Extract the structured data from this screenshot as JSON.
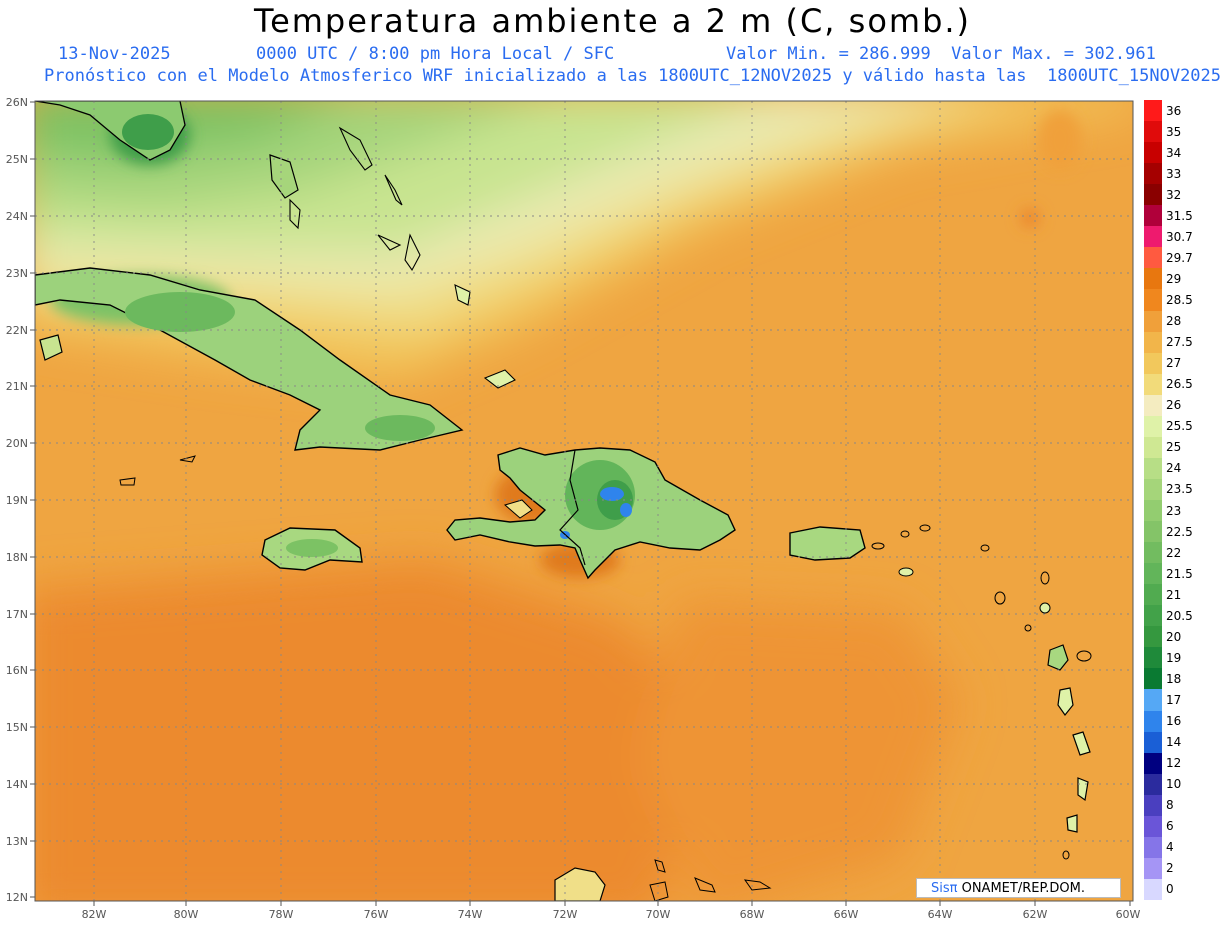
{
  "header": {
    "title": "Temperatura ambiente a 2 m (C, somb.)",
    "date": "13-Nov-2025",
    "time": "0000 UTC / 8:00 pm Hora Local / SFC",
    "minmax": "Valor Min. = 286.999  Valor Max. = 302.961",
    "model": "Pronóstico con el Modelo Atmosferico WRF inicializado a las 1800UTC_12NOV2025 y válido hasta las  1800UTC_15NOV2025"
  },
  "axes": {
    "lat_labels": [
      "26N",
      "25N",
      "24N",
      "23N",
      "22N",
      "21N",
      "20N",
      "19N",
      "18N",
      "17N",
      "16N",
      "15N",
      "14N",
      "13N",
      "12N"
    ],
    "lon_labels": [
      "82W",
      "80W",
      "78W",
      "76W",
      "74W",
      "72W",
      "70W",
      "68W",
      "66W",
      "64W",
      "62W",
      "60W"
    ]
  },
  "colorbar": {
    "labels": [
      "36",
      "35",
      "34",
      "33",
      "32",
      "31.5",
      "30.7",
      "29.7",
      "29",
      "28.5",
      "28",
      "27.5",
      "27",
      "26.5",
      "26",
      "25.5",
      "25",
      "24",
      "23.5",
      "23",
      "22.5",
      "22",
      "21.5",
      "21",
      "20.5",
      "20",
      "19",
      "18",
      "17",
      "16",
      "14",
      "12",
      "10",
      "8",
      "6",
      "4",
      "2",
      "0"
    ],
    "colors": [
      "#ff1a1a",
      "#e00b0b",
      "#c80000",
      "#a50000",
      "#8a0000",
      "#b0003a",
      "#ee1a6e",
      "#ff5a40",
      "#e8770f",
      "#f0871e",
      "#f0a03a",
      "#f2b54a",
      "#f2c85c",
      "#f2db7a",
      "#f4ecc0",
      "#dff2a8",
      "#cfe893",
      "#b7de86",
      "#a5d57a",
      "#93cd70",
      "#84c468",
      "#72bc60",
      "#62b55a",
      "#51ab50",
      "#42a249",
      "#35983f",
      "#1f8a3a",
      "#0a7a32",
      "#55a8f5",
      "#2f84ec",
      "#1a5fd6",
      "#000080",
      "#2b2b9e",
      "#4a3fbf",
      "#6a55d8",
      "#8575e8",
      "#a595f5",
      "#d8d8ff"
    ]
  },
  "credit": {
    "brand": "Sisπ",
    "text": " ONAMET/REP.DOM."
  }
}
